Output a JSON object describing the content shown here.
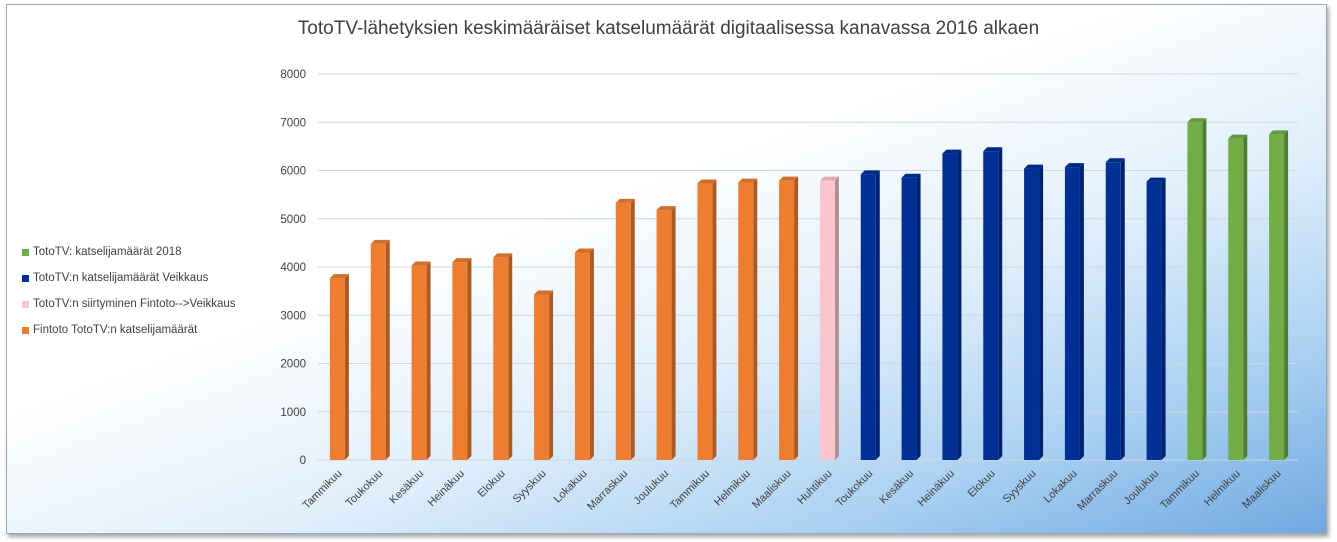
{
  "chart_data": {
    "type": "bar",
    "title": "TotoTV-lähetyksien keskimääräiset katselumäärät digitaalisessa kanavassa 2016 alkaen",
    "xlabel": "",
    "ylabel": "",
    "ylim": [
      0,
      8000
    ],
    "yticks": [
      0,
      1000,
      2000,
      3000,
      4000,
      5000,
      6000,
      7000,
      8000
    ],
    "grid": true,
    "legend_position": "left",
    "categories": [
      "Tammikuu",
      "Toukokuu",
      "Kesäkuu",
      "Heinäkuu",
      "Elokuu",
      "Syyskuu",
      "Lokakuu",
      "Marraskuu",
      "Joulukuu",
      "Tammikuu",
      "Helmikuu",
      "Maaliskuu",
      "Huhtikuu",
      "Toukokuu",
      "Kesäkuu",
      "Heinäkuu",
      "Elokuu",
      "Syyskuu",
      "Lokakuu",
      "Marraskuu",
      "Joulukuu",
      "Tammikuu",
      "Helmikuu",
      "Maaliskuu"
    ],
    "values": [
      3770,
      4480,
      4030,
      4100,
      4200,
      3430,
      4300,
      5330,
      5180,
      5730,
      5750,
      5790,
      5790,
      5920,
      5850,
      6350,
      6400,
      6040,
      6070,
      6170,
      5770,
      7000,
      6660,
      6750
    ],
    "bar_series": [
      0,
      0,
      0,
      0,
      0,
      0,
      0,
      0,
      0,
      0,
      0,
      0,
      1,
      2,
      2,
      2,
      2,
      2,
      2,
      2,
      2,
      3,
      3,
      3
    ],
    "series": [
      {
        "name": "Fintoto TotoTV:n katselijamäärät",
        "color": "#ED7D31"
      },
      {
        "name": "TotoTV:n siirtyminen Fintoto-->Veikkaus",
        "color": "#F8C6CC"
      },
      {
        "name": "TotoTV:n katselijamäärät Veikkaus",
        "color": "#002F96"
      },
      {
        "name": "TotoTV: katselijamäärät 2018",
        "color": "#70AD47"
      }
    ],
    "legend_order": [
      3,
      2,
      1,
      0
    ]
  }
}
